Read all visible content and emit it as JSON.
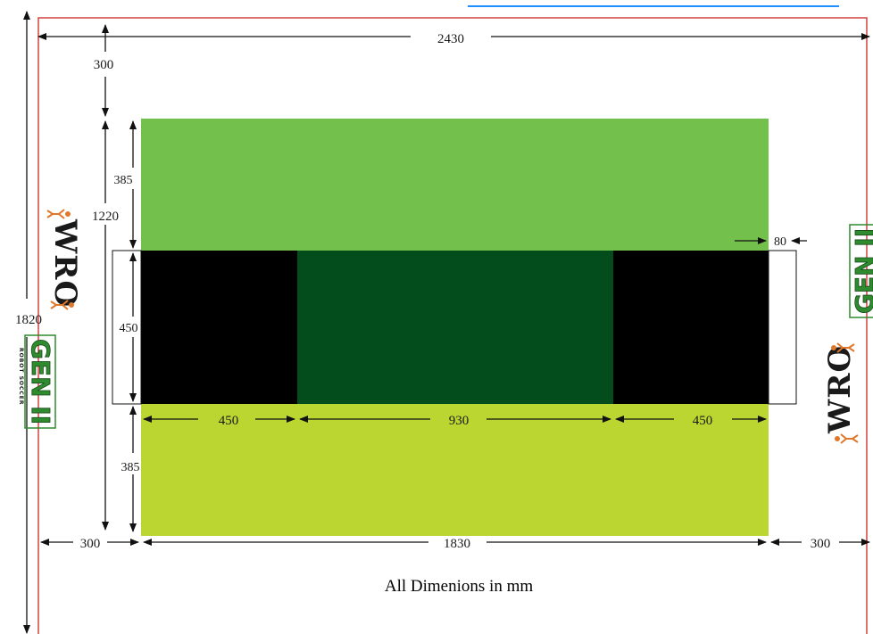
{
  "colors": {
    "top_band": "#74c04c",
    "bottom_band": "#bcd631",
    "center_field": "#034c1c",
    "goal_zone": "#000000",
    "border": "#d44040",
    "link_underline": "#1e90ff",
    "logo_green": "#2e8b2e",
    "logo_orange": "#e0782a"
  },
  "dimensions": {
    "total_width": "2430",
    "total_height": "1820",
    "top_margin": "300",
    "field_height": "1220",
    "top_band": "385",
    "goal_height": "450",
    "bottom_band": "385",
    "goal_offset": "80",
    "left_black": "450",
    "center_green": "930",
    "right_black": "450",
    "left_margin": "300",
    "field_width": "1830",
    "right_margin": "300"
  },
  "logos": {
    "wro": "WRO",
    "gen": "GEN II",
    "tagline": "ROBOT SOCCER"
  },
  "footer": {
    "note": "All Dimenions in mm"
  }
}
